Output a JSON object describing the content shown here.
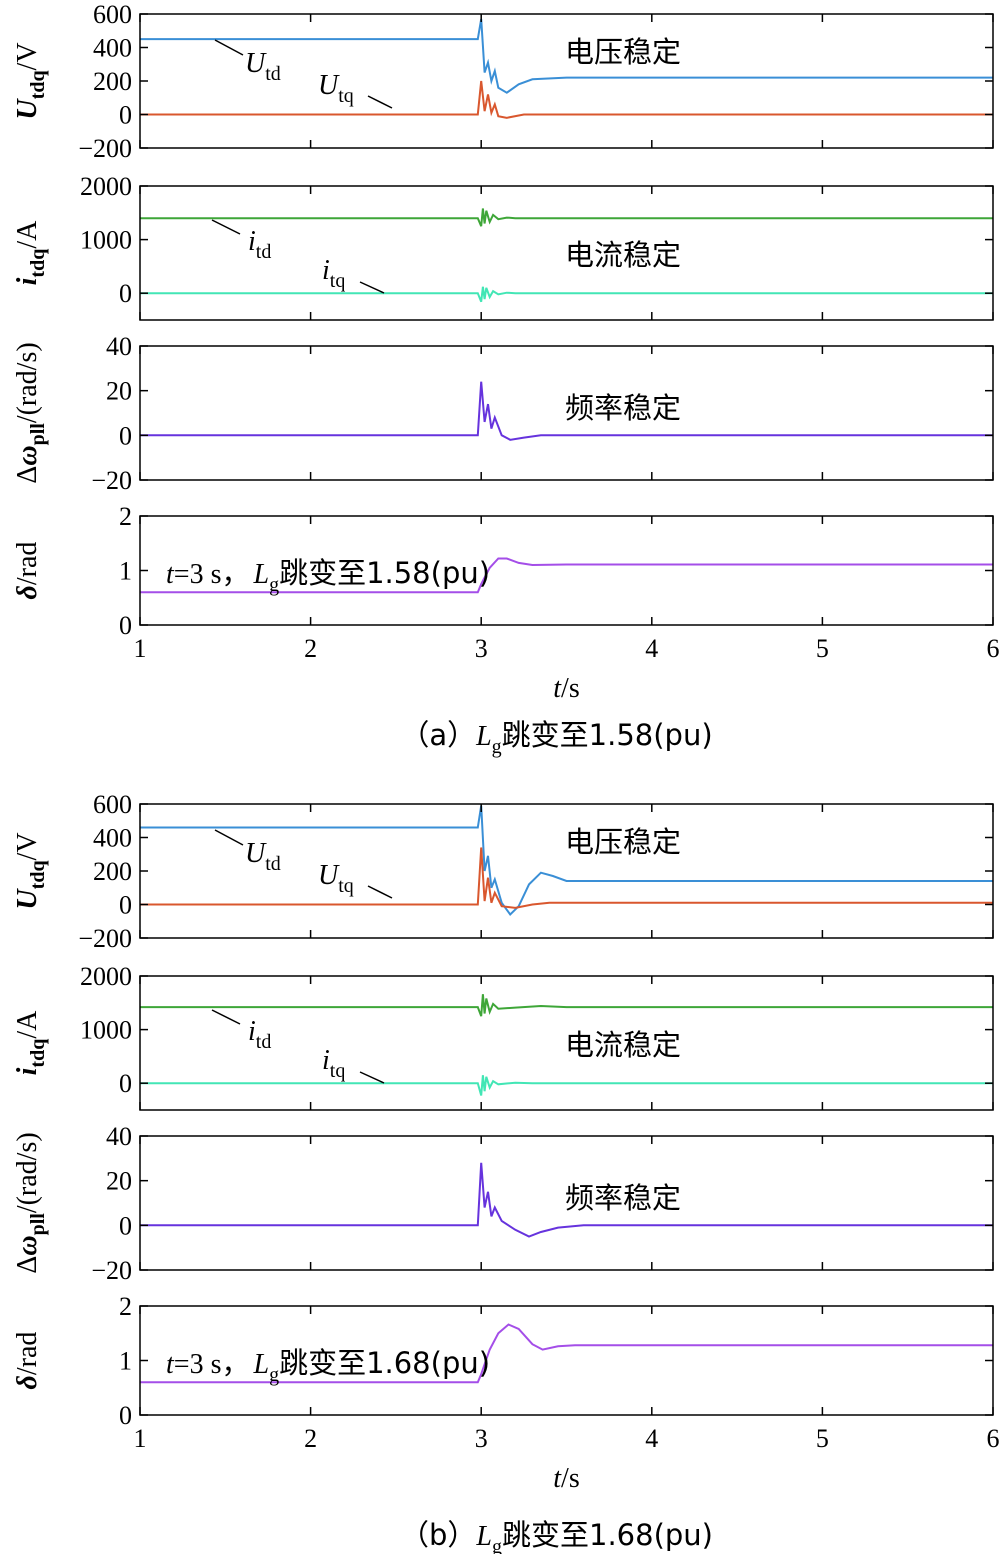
{
  "chart_data": [
    {
      "panel": "a",
      "caption": {
        "prefix": "（a）",
        "L": "L",
        "Lsub": "g",
        "suffix": "跳变至1.58(pu)"
      },
      "type": "line",
      "x_axis": {
        "label_var": "t",
        "label_unit": "/s",
        "range": [
          1,
          6
        ],
        "ticks": [
          "1",
          "2",
          "3",
          "4",
          "5",
          "6"
        ]
      },
      "subplots": [
        {
          "name": "voltage",
          "ylabel": {
            "var": "U",
            "sub": "tdq",
            "unit": "/V"
          },
          "ylim": [
            -200,
            600
          ],
          "yticks": [
            "600",
            "400",
            "200",
            "0",
            "−200"
          ],
          "note": "电压稳定",
          "series": [
            {
              "name": "U_td",
              "label": "U",
              "sub": "td",
              "color": "#3a8fd6",
              "points": [
                [
                  1,
                  450
                ],
                [
                  2.98,
                  450
                ],
                [
                  3.0,
                  570
                ],
                [
                  3.02,
                  250
                ],
                [
                  3.04,
                  310
                ],
                [
                  3.06,
                  200
                ],
                [
                  3.08,
                  260
                ],
                [
                  3.1,
                  160
                ],
                [
                  3.15,
                  130
                ],
                [
                  3.22,
                  180
                ],
                [
                  3.3,
                  210
                ],
                [
                  3.5,
                  220
                ],
                [
                  6,
                  220
                ]
              ]
            },
            {
              "name": "U_tq",
              "label": "U",
              "sub": "tq",
              "color": "#d9572e",
              "points": [
                [
                  1,
                  0
                ],
                [
                  2.98,
                  0
                ],
                [
                  3.0,
                  200
                ],
                [
                  3.02,
                  20
                ],
                [
                  3.04,
                  120
                ],
                [
                  3.06,
                  10
                ],
                [
                  3.08,
                  60
                ],
                [
                  3.1,
                  -10
                ],
                [
                  3.15,
                  -20
                ],
                [
                  3.25,
                  0
                ],
                [
                  6,
                  0
                ]
              ]
            }
          ]
        },
        {
          "name": "current",
          "ylabel": {
            "var": "i",
            "sub": "tdq",
            "unit": "/A"
          },
          "ylim": [
            -500,
            2000
          ],
          "yticks": [
            "2000",
            "1000",
            "0"
          ],
          "note": "电流稳定",
          "series": [
            {
              "name": "i_td",
              "label": "i",
              "sub": "td",
              "color": "#3ea638",
              "points": [
                [
                  1,
                  1400
                ],
                [
                  2.98,
                  1400
                ],
                [
                  3.0,
                  1250
                ],
                [
                  3.01,
                  1580
                ],
                [
                  3.02,
                  1300
                ],
                [
                  3.03,
                  1540
                ],
                [
                  3.05,
                  1330
                ],
                [
                  3.07,
                  1460
                ],
                [
                  3.1,
                  1380
                ],
                [
                  3.15,
                  1410
                ],
                [
                  3.2,
                  1400
                ],
                [
                  6,
                  1400
                ]
              ]
            },
            {
              "name": "i_tq",
              "label": "i",
              "sub": "tq",
              "color": "#42e6b5",
              "points": [
                [
                  1,
                  0
                ],
                [
                  2.98,
                  0
                ],
                [
                  3.0,
                  -160
                ],
                [
                  3.01,
                  120
                ],
                [
                  3.02,
                  -110
                ],
                [
                  3.03,
                  100
                ],
                [
                  3.05,
                  -70
                ],
                [
                  3.07,
                  40
                ],
                [
                  3.1,
                  -20
                ],
                [
                  3.15,
                  10
                ],
                [
                  3.2,
                  0
                ],
                [
                  6,
                  0
                ]
              ]
            }
          ]
        },
        {
          "name": "frequency",
          "ylabel": {
            "delta": "Δ",
            "var": "ω",
            "sub": "pll",
            "unit": "/(rad/s)"
          },
          "ylim": [
            -20,
            40
          ],
          "yticks": [
            "40",
            "20",
            "0",
            "−20"
          ],
          "note": "频率稳定",
          "series": [
            {
              "name": "dw_pll",
              "color": "#6633dd",
              "points": [
                [
                  1,
                  0
                ],
                [
                  2.98,
                  0
                ],
                [
                  3.0,
                  24
                ],
                [
                  3.02,
                  6
                ],
                [
                  3.04,
                  14
                ],
                [
                  3.06,
                  3
                ],
                [
                  3.08,
                  8
                ],
                [
                  3.12,
                  0
                ],
                [
                  3.17,
                  -2
                ],
                [
                  3.25,
                  -1
                ],
                [
                  3.35,
                  0
                ],
                [
                  6,
                  0
                ]
              ]
            }
          ]
        },
        {
          "name": "angle",
          "ylabel": {
            "var": "δ",
            "unit": "/rad"
          },
          "ylim": [
            0,
            2
          ],
          "yticks": [
            "2",
            "1",
            "0"
          ],
          "note_parts": {
            "t": "t",
            "eq": "=3 s，",
            "L": "L",
            "Lsub": "g",
            "rest": "跳变至1.58(pu)"
          },
          "series": [
            {
              "name": "delta",
              "color": "#a44ee8",
              "points": [
                [
                  1,
                  0.6
                ],
                [
                  2.98,
                  0.6
                ],
                [
                  3.0,
                  0.75
                ],
                [
                  3.05,
                  1.05
                ],
                [
                  3.1,
                  1.22
                ],
                [
                  3.15,
                  1.22
                ],
                [
                  3.22,
                  1.14
                ],
                [
                  3.3,
                  1.1
                ],
                [
                  3.5,
                  1.11
                ],
                [
                  6,
                  1.11
                ]
              ]
            }
          ]
        }
      ]
    },
    {
      "panel": "b",
      "caption": {
        "prefix": "（b）",
        "L": "L",
        "Lsub": "g",
        "suffix": "跳变至1.68(pu)"
      },
      "type": "line",
      "x_axis": {
        "label_var": "t",
        "label_unit": "/s",
        "range": [
          1,
          6
        ],
        "ticks": [
          "1",
          "2",
          "3",
          "4",
          "5",
          "6"
        ]
      },
      "subplots": [
        {
          "name": "voltage",
          "ylabel": {
            "var": "U",
            "sub": "tdq",
            "unit": "/V"
          },
          "ylim": [
            -200,
            600
          ],
          "yticks": [
            "600",
            "400",
            "200",
            "0",
            "−200"
          ],
          "note": "电压稳定",
          "series": [
            {
              "name": "U_td",
              "label": "U",
              "sub": "td",
              "color": "#3a8fd6",
              "points": [
                [
                  1,
                  460
                ],
                [
                  2.98,
                  460
                ],
                [
                  3.0,
                  590
                ],
                [
                  3.02,
                  200
                ],
                [
                  3.04,
                  290
                ],
                [
                  3.06,
                  100
                ],
                [
                  3.08,
                  150
                ],
                [
                  3.12,
                  10
                ],
                [
                  3.17,
                  -60
                ],
                [
                  3.22,
                  -10
                ],
                [
                  3.28,
                  120
                ],
                [
                  3.35,
                  190
                ],
                [
                  3.42,
                  170
                ],
                [
                  3.5,
                  140
                ],
                [
                  3.6,
                  140
                ],
                [
                  6,
                  140
                ]
              ]
            },
            {
              "name": "U_tq",
              "label": "U",
              "sub": "tq",
              "color": "#d9572e",
              "points": [
                [
                  1,
                  0
                ],
                [
                  2.98,
                  0
                ],
                [
                  3.0,
                  340
                ],
                [
                  3.02,
                  20
                ],
                [
                  3.04,
                  160
                ],
                [
                  3.06,
                  10
                ],
                [
                  3.08,
                  70
                ],
                [
                  3.12,
                  -10
                ],
                [
                  3.2,
                  -20
                ],
                [
                  3.3,
                  0
                ],
                [
                  3.4,
                  10
                ],
                [
                  6,
                  10
                ]
              ]
            }
          ]
        },
        {
          "name": "current",
          "ylabel": {
            "var": "i",
            "sub": "tdq",
            "unit": "/A"
          },
          "ylim": [
            -500,
            2000
          ],
          "yticks": [
            "2000",
            "1000",
            "0"
          ],
          "note": "电流稳定",
          "series": [
            {
              "name": "i_td",
              "label": "i",
              "sub": "td",
              "color": "#3ea638",
              "points": [
                [
                  1,
                  1420
                ],
                [
                  2.98,
                  1420
                ],
                [
                  3.0,
                  1250
                ],
                [
                  3.01,
                  1660
                ],
                [
                  3.02,
                  1300
                ],
                [
                  3.03,
                  1580
                ],
                [
                  3.05,
                  1330
                ],
                [
                  3.07,
                  1480
                ],
                [
                  3.1,
                  1390
                ],
                [
                  3.2,
                  1410
                ],
                [
                  3.35,
                  1440
                ],
                [
                  3.5,
                  1420
                ],
                [
                  6,
                  1420
                ]
              ]
            },
            {
              "name": "i_tq",
              "label": "i",
              "sub": "tq",
              "color": "#42e6b5",
              "points": [
                [
                  1,
                  0
                ],
                [
                  2.98,
                  0
                ],
                [
                  3.0,
                  -230
                ],
                [
                  3.01,
                  150
                ],
                [
                  3.02,
                  -150
                ],
                [
                  3.03,
                  120
                ],
                [
                  3.05,
                  -80
                ],
                [
                  3.07,
                  40
                ],
                [
                  3.1,
                  -20
                ],
                [
                  3.2,
                  10
                ],
                [
                  3.3,
                  0
                ],
                [
                  6,
                  0
                ]
              ]
            }
          ]
        },
        {
          "name": "frequency",
          "ylabel": {
            "delta": "Δ",
            "var": "ω",
            "sub": "pll",
            "unit": "/(rad/s)"
          },
          "ylim": [
            -20,
            40
          ],
          "yticks": [
            "40",
            "20",
            "0",
            "−20"
          ],
          "note": "频率稳定",
          "series": [
            {
              "name": "dw_pll",
              "color": "#6633dd",
              "points": [
                [
                  1,
                  0
                ],
                [
                  2.98,
                  0
                ],
                [
                  3.0,
                  28
                ],
                [
                  3.02,
                  8
                ],
                [
                  3.04,
                  15
                ],
                [
                  3.06,
                  4
                ],
                [
                  3.08,
                  8
                ],
                [
                  3.12,
                  2
                ],
                [
                  3.2,
                  -2
                ],
                [
                  3.28,
                  -5
                ],
                [
                  3.35,
                  -3
                ],
                [
                  3.45,
                  -1
                ],
                [
                  3.6,
                  0
                ],
                [
                  6,
                  0
                ]
              ]
            }
          ]
        },
        {
          "name": "angle",
          "ylabel": {
            "var": "δ",
            "unit": "/rad"
          },
          "ylim": [
            0,
            2
          ],
          "yticks": [
            "2",
            "1",
            "0"
          ],
          "note_parts": {
            "t": "t",
            "eq": "=3 s，",
            "L": "L",
            "Lsub": "g",
            "rest": "跳变至1.68(pu)"
          },
          "series": [
            {
              "name": "delta",
              "color": "#a44ee8",
              "points": [
                [
                  1,
                  0.6
                ],
                [
                  2.98,
                  0.6
                ],
                [
                  3.0,
                  0.75
                ],
                [
                  3.05,
                  1.2
                ],
                [
                  3.1,
                  1.5
                ],
                [
                  3.16,
                  1.66
                ],
                [
                  3.22,
                  1.58
                ],
                [
                  3.3,
                  1.3
                ],
                [
                  3.36,
                  1.2
                ],
                [
                  3.45,
                  1.26
                ],
                [
                  3.55,
                  1.28
                ],
                [
                  6,
                  1.28
                ]
              ]
            }
          ]
        }
      ]
    }
  ]
}
